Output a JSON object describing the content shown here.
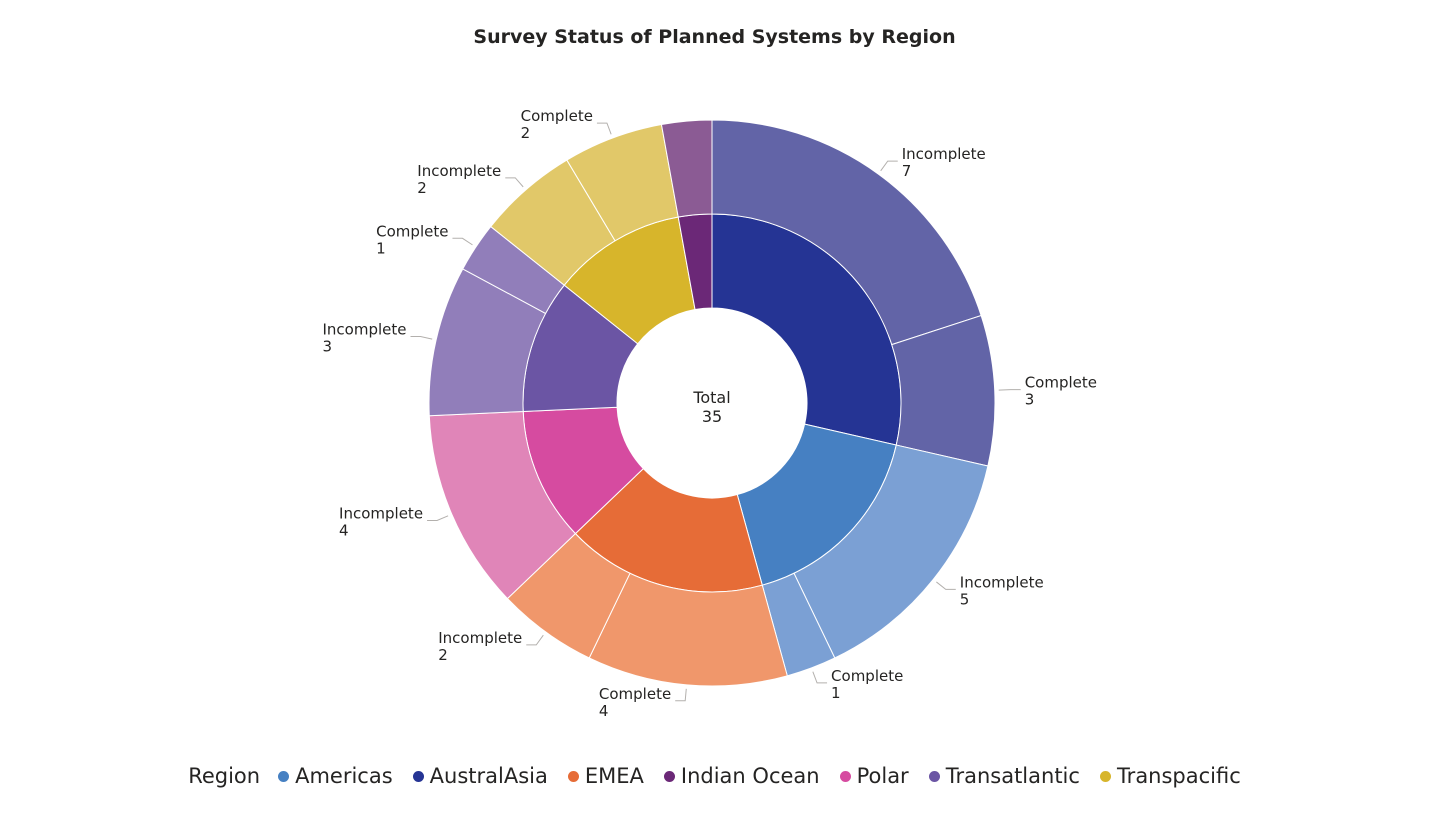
{
  "chart_data": {
    "type": "donut",
    "title": "Survey Status of Planned Systems by Region",
    "center_label": {
      "line1": "Total",
      "line2": "35"
    },
    "total": 35,
    "legend": {
      "title": "Region",
      "placement": "bottom"
    },
    "regions": [
      {
        "name": "AustralAsia",
        "value": 10,
        "color": "#253494",
        "children": [
          {
            "status": "Incomplete",
            "value": 7,
            "color": "#6264a7",
            "label": "Incomplete",
            "value_label": "7",
            "show_label": true
          },
          {
            "status": "Complete",
            "value": 3,
            "color": "#6264a7",
            "label": "Complete",
            "value_label": "3",
            "show_label": true
          }
        ]
      },
      {
        "name": "Americas",
        "value": 6,
        "color": "#4680c2",
        "children": [
          {
            "status": "Incomplete",
            "value": 5,
            "color": "#7ba0d4",
            "label": "Incomplete",
            "value_label": "5",
            "show_label": true
          },
          {
            "status": "Complete",
            "value": 1,
            "color": "#7ba0d4",
            "label": "Complete",
            "value_label": "1",
            "show_label": true
          }
        ]
      },
      {
        "name": "EMEA",
        "value": 6,
        "color": "#e66c37",
        "children": [
          {
            "status": "Complete",
            "value": 4,
            "color": "#f0976b",
            "label": "Complete",
            "value_label": "4",
            "show_label": true
          },
          {
            "status": "Incomplete",
            "value": 2,
            "color": "#f0976b",
            "label": "Incomplete",
            "value_label": "2",
            "show_label": true
          }
        ]
      },
      {
        "name": "Polar",
        "value": 4,
        "color": "#d64ba0",
        "children": [
          {
            "status": "Incomplete",
            "value": 4,
            "color": "#e085b8",
            "label": "Incomplete",
            "value_label": "4",
            "show_label": true
          }
        ]
      },
      {
        "name": "Transatlantic",
        "value": 4,
        "color": "#6b55a4",
        "children": [
          {
            "status": "Incomplete",
            "value": 3,
            "color": "#917eba",
            "label": "Incomplete",
            "value_label": "3",
            "show_label": true
          },
          {
            "status": "Complete",
            "value": 1,
            "color": "#917eba",
            "label": "Complete",
            "value_label": "1",
            "show_label": true
          }
        ]
      },
      {
        "name": "Transpacific",
        "value": 4,
        "color": "#d7b52b",
        "children": [
          {
            "status": "Incomplete",
            "value": 2,
            "color": "#e1c869",
            "label": "Incomplete",
            "value_label": "2",
            "show_label": true
          },
          {
            "status": "Complete",
            "value": 2,
            "color": "#e1c869",
            "label": "Complete",
            "value_label": "2",
            "show_label": true
          }
        ]
      },
      {
        "name": "Indian Ocean",
        "value": 1,
        "color": "#6b2877",
        "children": [
          {
            "status": "Complete",
            "value": 1,
            "color": "#8b5b94",
            "label": "Complete",
            "value_label": "1",
            "show_label": false
          }
        ]
      }
    ],
    "legend_items": [
      {
        "name": "Americas",
        "color": "#4680c2"
      },
      {
        "name": "AustralAsia",
        "color": "#253494"
      },
      {
        "name": "EMEA",
        "color": "#e66c37"
      },
      {
        "name": "Indian Ocean",
        "color": "#6b2877"
      },
      {
        "name": "Polar",
        "color": "#d64ba0"
      },
      {
        "name": "Transatlantic",
        "color": "#6b55a4"
      },
      {
        "name": "Transpacific",
        "color": "#d7b52b"
      }
    ]
  }
}
